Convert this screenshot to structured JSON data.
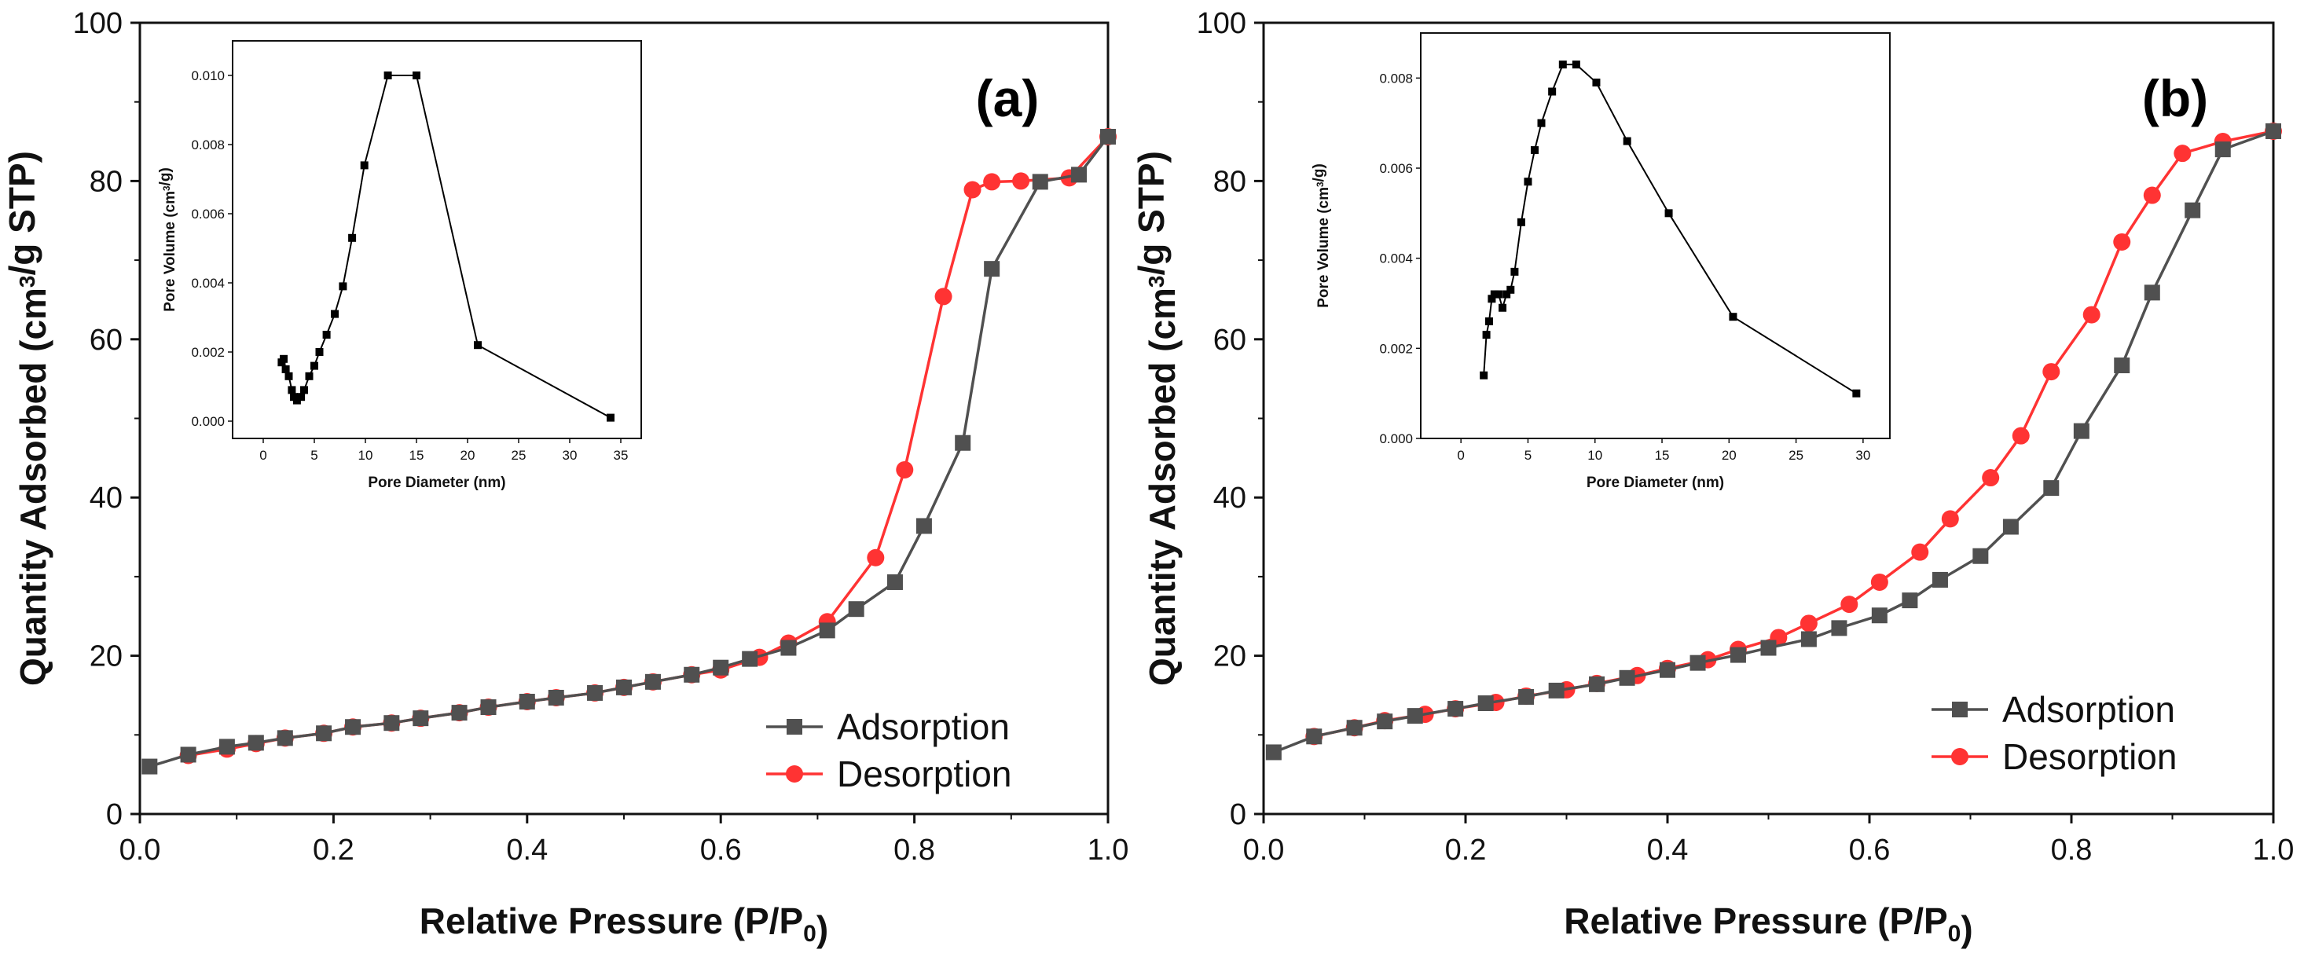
{
  "chart_data": [
    {
      "panel": "(a)",
      "type": "line",
      "xlabel": "Relative Pressure (P/P0)",
      "ylabel": "Quantity Adsorbed (cm3/g STP)",
      "xlim": [
        0,
        1
      ],
      "ylim": [
        0,
        100
      ],
      "xticks": [
        0,
        0.2,
        0.4,
        0.6,
        0.8,
        1.0
      ],
      "xtick_labels": [
        "0.0",
        "0.2",
        "0.4",
        "0.6",
        "0.8",
        "1.0"
      ],
      "yticks": [
        0,
        20,
        40,
        60,
        80,
        100
      ],
      "ytick_labels": [
        "0",
        "20",
        "40",
        "60",
        "80",
        "100"
      ],
      "legend_position": "bottom-right",
      "series": [
        {
          "name": "Adsorption",
          "color": "#505050",
          "marker": "square",
          "x": [
            0.01,
            0.05,
            0.09,
            0.12,
            0.15,
            0.19,
            0.22,
            0.26,
            0.29,
            0.33,
            0.36,
            0.4,
            0.43,
            0.47,
            0.5,
            0.53,
            0.57,
            0.6,
            0.63,
            0.67,
            0.71,
            0.74,
            0.78,
            0.81,
            0.85,
            0.88,
            0.93,
            0.97,
            1.0
          ],
          "y": [
            6.0,
            7.5,
            8.5,
            9.0,
            9.6,
            10.2,
            11.0,
            11.5,
            12.1,
            12.8,
            13.5,
            14.2,
            14.7,
            15.3,
            16.0,
            16.7,
            17.6,
            18.5,
            19.6,
            21.0,
            23.2,
            25.9,
            29.3,
            36.4,
            46.9,
            68.9,
            79.9,
            80.8,
            85.6
          ]
        },
        {
          "name": "Desorption",
          "color": "#ff3333",
          "marker": "circle",
          "x": [
            1.0,
            0.96,
            0.91,
            0.88,
            0.86,
            0.83,
            0.79,
            0.76,
            0.71,
            0.67,
            0.64,
            0.6,
            0.57,
            0.53,
            0.5,
            0.47,
            0.43,
            0.4,
            0.36,
            0.33,
            0.29,
            0.26,
            0.22,
            0.19,
            0.15,
            0.12,
            0.09,
            0.05
          ],
          "y": [
            85.6,
            80.4,
            80.0,
            79.9,
            78.9,
            65.4,
            43.5,
            32.4,
            24.3,
            21.6,
            19.8,
            18.2,
            17.6,
            16.7,
            16.0,
            15.3,
            14.7,
            14.2,
            13.5,
            12.8,
            12.1,
            11.5,
            11.0,
            10.2,
            9.6,
            8.9,
            8.2,
            7.4
          ]
        }
      ],
      "inset": {
        "type": "line",
        "xlabel": "Pore Diameter (nm)",
        "ylabel": "Pore Volume (cm3/g)",
        "xlim": [
          -3,
          37
        ],
        "ylim": [
          -0.0005,
          0.011
        ],
        "xticks": [
          0,
          5,
          10,
          15,
          20,
          25,
          30,
          35
        ],
        "xtick_labels": [
          "0",
          "5",
          "10",
          "15",
          "20",
          "25",
          "30",
          "35"
        ],
        "yticks": [
          0.0,
          0.002,
          0.004,
          0.006,
          0.008,
          0.01
        ],
        "ytick_labels": [
          "0.000",
          "0.002",
          "0.004",
          "0.006",
          "0.008",
          "0.010"
        ],
        "x": [
          1.8,
          2.0,
          2.2,
          2.5,
          2.8,
          3.0,
          3.3,
          3.7,
          4.0,
          4.5,
          5.0,
          5.5,
          6.2,
          7.0,
          7.8,
          8.7,
          9.9,
          12.2,
          15.0,
          21.0,
          34.0
        ],
        "y": [
          0.0017,
          0.0018,
          0.0015,
          0.0013,
          0.0009,
          0.0007,
          0.0006,
          0.0007,
          0.0009,
          0.0013,
          0.0016,
          0.002,
          0.0025,
          0.0031,
          0.0039,
          0.0053,
          0.0074,
          0.01,
          0.01,
          0.0022,
          0.0001
        ]
      }
    },
    {
      "panel": "(b)",
      "type": "line",
      "xlabel": "Relative Pressure (P/P0)",
      "ylabel": "Quantity Adsorbed (cm3/g STP)",
      "xlim": [
        0,
        1
      ],
      "ylim": [
        0,
        100
      ],
      "xticks": [
        0,
        0.2,
        0.4,
        0.6,
        0.8,
        1.0
      ],
      "xtick_labels": [
        "0.0",
        "0.2",
        "0.4",
        "0.6",
        "0.8",
        "1.0"
      ],
      "yticks": [
        0,
        20,
        40,
        60,
        80,
        100
      ],
      "ytick_labels": [
        "0",
        "20",
        "40",
        "60",
        "80",
        "100"
      ],
      "legend_position": "bottom-right",
      "series": [
        {
          "name": "Adsorption",
          "color": "#505050",
          "marker": "square",
          "x": [
            0.01,
            0.05,
            0.09,
            0.12,
            0.15,
            0.19,
            0.22,
            0.26,
            0.29,
            0.33,
            0.36,
            0.4,
            0.43,
            0.47,
            0.5,
            0.54,
            0.57,
            0.61,
            0.64,
            0.67,
            0.71,
            0.74,
            0.78,
            0.81,
            0.85,
            0.88,
            0.92,
            0.95,
            1.0
          ],
          "y": [
            7.8,
            9.8,
            10.9,
            11.7,
            12.4,
            13.3,
            14.0,
            14.8,
            15.6,
            16.4,
            17.2,
            18.2,
            19.1,
            20.1,
            21.0,
            22.1,
            23.5,
            25.1,
            27.0,
            29.6,
            32.6,
            36.3,
            41.2,
            48.4,
            56.7,
            65.9,
            76.3,
            84.0,
            86.3
          ]
        },
        {
          "name": "Desorption",
          "color": "#ff3333",
          "marker": "circle",
          "x": [
            1.0,
            0.95,
            0.91,
            0.88,
            0.85,
            0.82,
            0.78,
            0.75,
            0.72,
            0.68,
            0.65,
            0.61,
            0.58,
            0.54,
            0.51,
            0.47,
            0.44,
            0.4,
            0.37,
            0.33,
            0.3,
            0.26,
            0.23,
            0.19,
            0.16,
            0.12,
            0.09,
            0.05
          ],
          "y": [
            86.3,
            85.0,
            83.5,
            78.2,
            72.3,
            63.1,
            55.9,
            47.8,
            42.5,
            37.3,
            33.1,
            29.3,
            26.5,
            24.1,
            22.3,
            20.8,
            19.5,
            18.4,
            17.5,
            16.5,
            15.7,
            14.9,
            14.1,
            13.3,
            12.6,
            11.8,
            10.9,
            9.8
          ]
        }
      ],
      "inset": {
        "type": "line",
        "xlabel": "Pore Diameter (nm)",
        "ylabel": "Pore Volume (cm3/g)",
        "xlim": [
          -3,
          32
        ],
        "ylim": [
          0,
          0.009
        ],
        "xticks": [
          0,
          5,
          10,
          15,
          20,
          25,
          30
        ],
        "xtick_labels": [
          "0",
          "5",
          "10",
          "15",
          "20",
          "25",
          "30"
        ],
        "yticks": [
          0.0,
          0.002,
          0.004,
          0.006,
          0.008
        ],
        "ytick_labels": [
          "0.000",
          "0.002",
          "0.004",
          "0.006",
          "0.008"
        ],
        "x": [
          1.7,
          1.9,
          2.1,
          2.3,
          2.5,
          2.8,
          3.1,
          3.4,
          3.7,
          4.0,
          4.5,
          5.0,
          5.5,
          6.0,
          6.8,
          7.6,
          8.6,
          10.1,
          12.4,
          15.5,
          20.3,
          29.5
        ],
        "y": [
          0.0014,
          0.0023,
          0.0026,
          0.0031,
          0.0032,
          0.0032,
          0.0029,
          0.0032,
          0.0033,
          0.0037,
          0.0048,
          0.0057,
          0.0064,
          0.007,
          0.0077,
          0.0083,
          0.0083,
          0.0079,
          0.0066,
          0.005,
          0.0027,
          0.001
        ]
      }
    }
  ]
}
